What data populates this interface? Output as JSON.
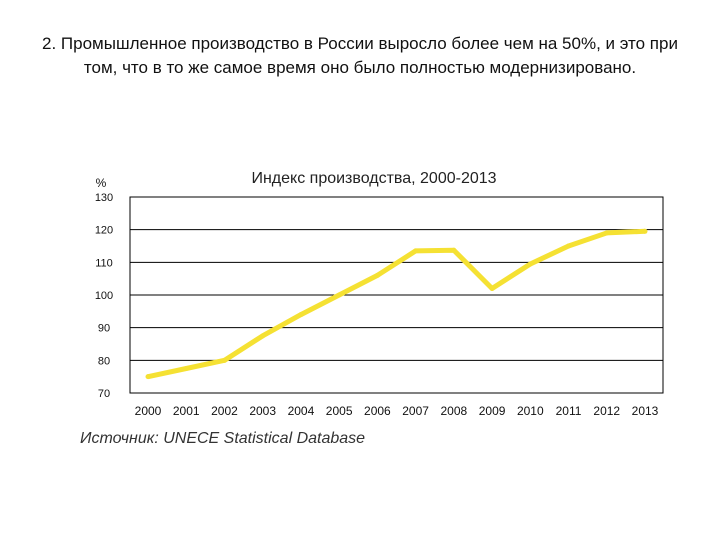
{
  "slide": {
    "title": "2. Промышленное производство в России выросло более чем на 50%, и это при том, что в то же самое время оно было полностью модернизировано."
  },
  "source": "Источник: UNECE Statistical Database",
  "chart_data": {
    "type": "line",
    "title": "Индекс производства, 2000-2013",
    "xlabel": "",
    "ylabel": "%",
    "categories": [
      "2000",
      "2001",
      "2002",
      "2003",
      "2004",
      "2005",
      "2006",
      "2007",
      "2008",
      "2009",
      "2010",
      "2011",
      "2012",
      "2013"
    ],
    "series": [
      {
        "values": [
          75,
          77.5,
          80,
          87.5,
          94,
          100,
          106,
          113.5,
          113.7,
          102,
          109.5,
          115,
          119,
          119.5
        ]
      }
    ],
    "ylim": [
      70,
      130
    ],
    "yticks": [
      70,
      80,
      90,
      100,
      110,
      120,
      130
    ],
    "grid": true,
    "legend": "none",
    "colors": {
      "line": "#F5E133",
      "grid": "#000000",
      "frame": "#000000",
      "text": "#111111"
    }
  }
}
